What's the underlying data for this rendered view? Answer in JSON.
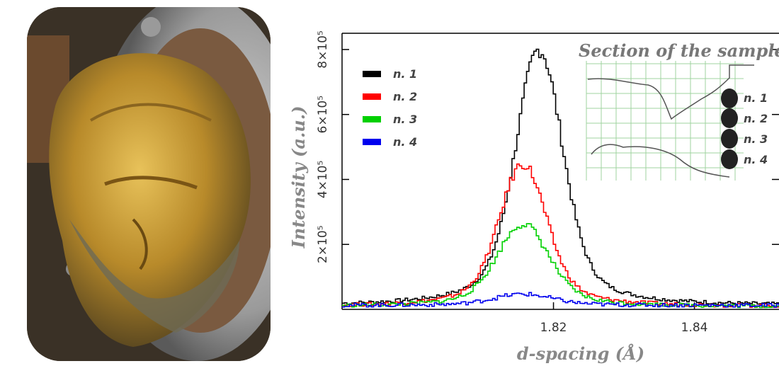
{
  "photo": {
    "subject": "gilded-bronze-head-relief"
  },
  "chart_data": {
    "type": "line",
    "xlabel": "d-spacing (Å)",
    "ylabel": "Intensity (a.u.)",
    "xlim": [
      1.79,
      1.852
    ],
    "ylim": [
      0,
      850000
    ],
    "x_ticks": [
      1.82,
      1.84
    ],
    "x_tick_labels": [
      "1.82",
      "1.84"
    ],
    "y_ticks": [
      200000,
      400000,
      600000,
      800000
    ],
    "y_tick_labels": [
      "2×10⁵",
      "4×10⁵",
      "6×10⁵",
      "8×10⁵"
    ],
    "legend_position": "top-left",
    "series": [
      {
        "name": "n. 1",
        "color": "#000000",
        "peak_x": 1.8178,
        "peak": 790000,
        "width": 0.0032,
        "baseline": 10000
      },
      {
        "name": "n. 2",
        "color": "#ff0000",
        "peak_x": 1.8155,
        "peak": 440000,
        "width": 0.0032,
        "baseline": 8000
      },
      {
        "name": "n. 3",
        "color": "#00d000",
        "peak_x": 1.8155,
        "peak": 255000,
        "width": 0.0035,
        "baseline": 8000
      },
      {
        "name": "n. 4",
        "color": "#0000ee",
        "peak_x": 1.8155,
        "peak": 35000,
        "width": 0.004,
        "baseline": 12000
      }
    ],
    "inset": {
      "title": "Section of the sample",
      "labels": [
        "n. 1",
        "n. 2",
        "n. 3",
        "n. 4"
      ]
    }
  }
}
